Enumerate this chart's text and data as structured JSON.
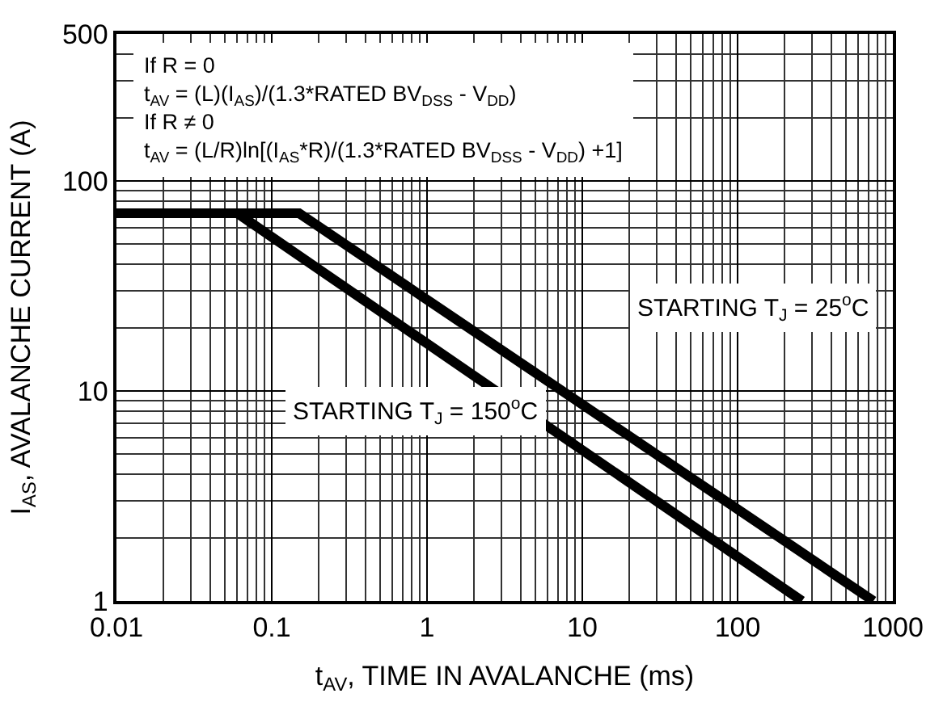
{
  "chart_data": {
    "type": "line",
    "xlabel": "t$_{AV}$, TIME IN AVALANCHE (ms)",
    "ylabel": "I$_{AS}$, AVALANCHE CURRENT (A)",
    "log": "xy",
    "grid": true,
    "legend": false,
    "marker": "none",
    "line_style": "solid",
    "xlim": [
      0.01,
      1000
    ],
    "xticks": [
      0.01,
      0.1,
      1,
      10,
      100,
      1000
    ],
    "ylim": [
      1,
      500
    ],
    "yticks": [
      1,
      10,
      100,
      500
    ],
    "series": [
      {
        "name": "STARTING T$_{J}$ = 25$^{o}$C",
        "color": "#000000",
        "x": [
          0.01,
          0.15,
          750
        ],
        "values": [
          70,
          70,
          1
        ]
      },
      {
        "name": "STARTING T$_{J}$ = 150$^{o}$C",
        "color": "#000000",
        "x": [
          0.01,
          0.06,
          260
        ],
        "values": [
          70,
          70,
          1
        ]
      }
    ],
    "annotations": [
      "If R = 0\nt$_{AV}$ = (L)(I$_{AS}$)/(1.3*RATED BV$_{DSS}$ - V$_{DD}$)\nIf R ≠ 0\nt$_{AV}$ = (L/R)ln[(I$_{AS}$*R)/(1.3*RATED BV$_{DSS}$ - V$_{DD}$) +1]"
    ]
  }
}
